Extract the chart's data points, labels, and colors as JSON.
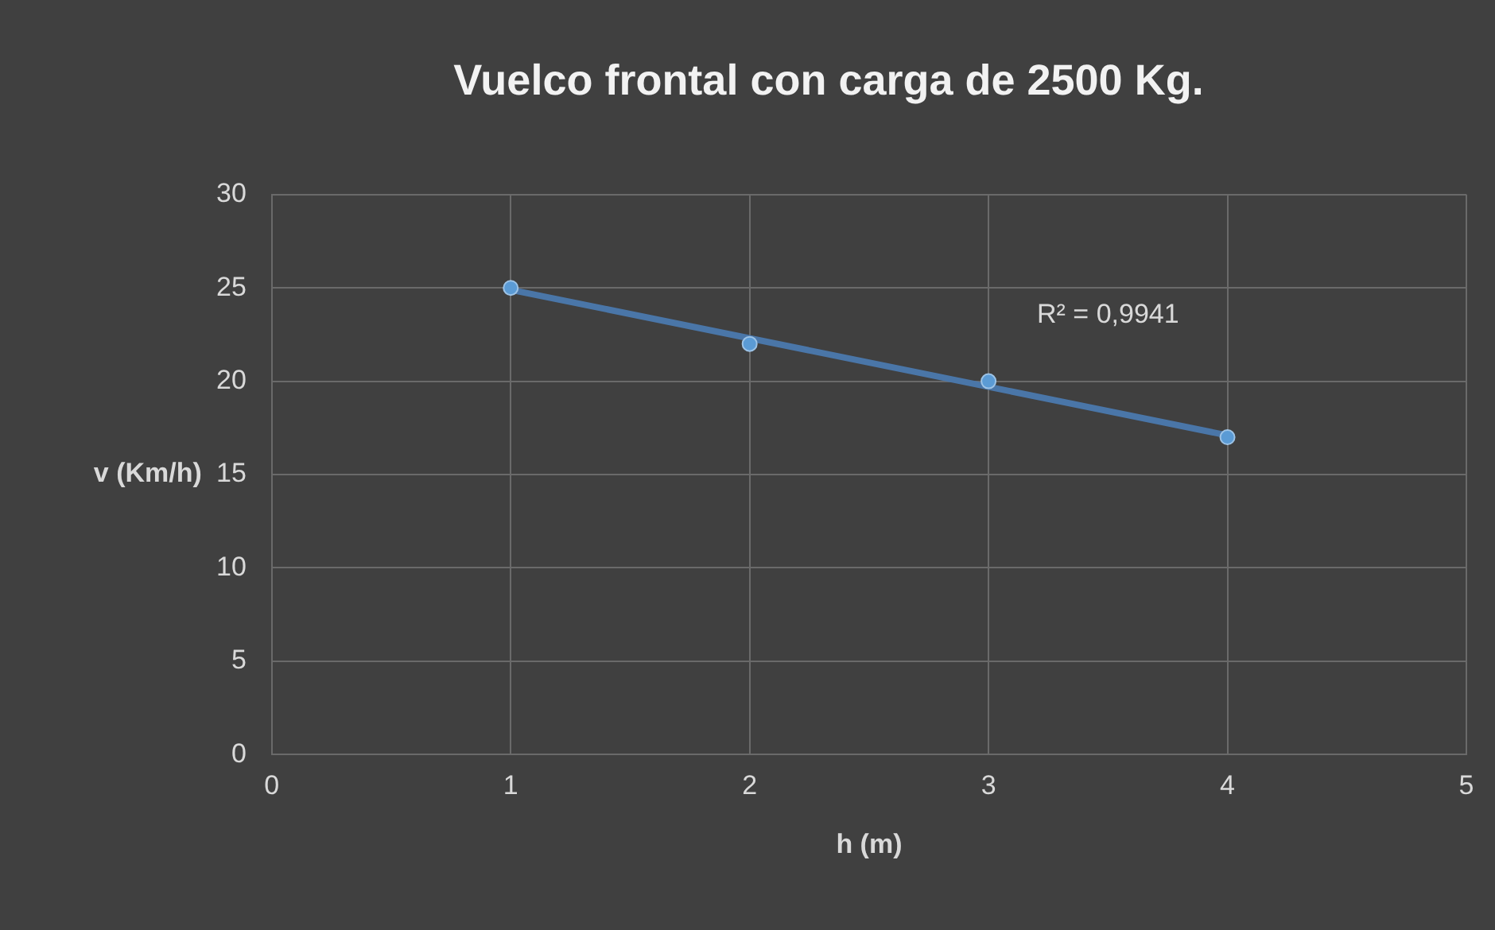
{
  "chart_data": {
    "type": "scatter",
    "title": "Vuelco frontal con carga de 2500 Kg.",
    "xlabel": "h (m)",
    "ylabel": "v (Km/h)",
    "x": [
      1,
      2,
      3,
      4
    ],
    "series": [
      {
        "type": "scatter",
        "color": "#5b9bd5",
        "marker": "circle",
        "values": [
          25,
          22,
          20,
          17
        ]
      },
      {
        "type": "line",
        "color": "#4a76a8",
        "x": [
          1,
          4
        ],
        "values": [
          24.9,
          17.1
        ]
      }
    ],
    "xlim": [
      0,
      5
    ],
    "xticks": [
      0,
      1,
      2,
      3,
      4,
      5
    ],
    "ylim": [
      0,
      30
    ],
    "yticks": [
      0,
      5,
      10,
      15,
      20,
      25,
      30
    ],
    "grid": true,
    "legend": false,
    "line_style": "solid",
    "annotations": [
      "R² = 0,9941"
    ]
  }
}
